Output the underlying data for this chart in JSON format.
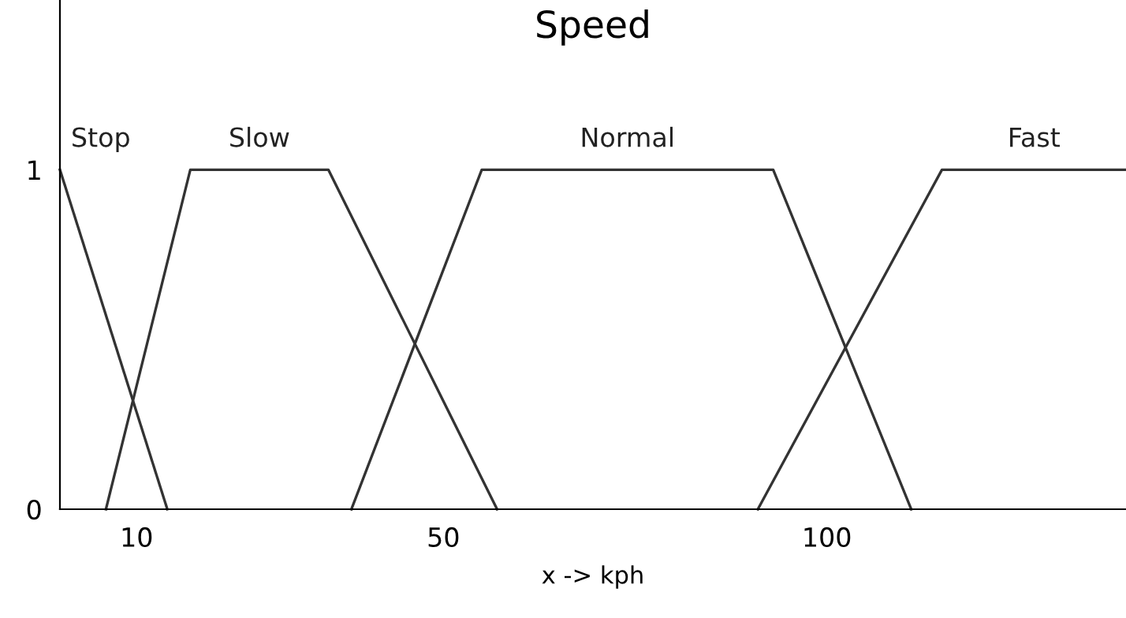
{
  "chart_data": {
    "type": "line",
    "title": "Speed",
    "xlabel": "x -> kph",
    "xlim": [
      0,
      139
    ],
    "xticks": [
      10,
      50,
      100
    ],
    "ylim": [
      0,
      1.5
    ],
    "yticks": [
      0,
      1
    ],
    "grid": false,
    "legend": false,
    "marker": "none",
    "line_style": "solid",
    "series": [
      {
        "name": "Stop",
        "color": "#333333",
        "x": [
          0,
          14
        ],
        "values": [
          1,
          0
        ]
      },
      {
        "name": "Slow",
        "color": "#333333",
        "x": [
          6,
          17,
          35,
          57
        ],
        "values": [
          0,
          1,
          1,
          0
        ]
      },
      {
        "name": "Normal",
        "color": "#333333",
        "x": [
          38,
          55,
          93,
          111
        ],
        "values": [
          0,
          1,
          1,
          0
        ]
      },
      {
        "name": "Fast",
        "color": "#333333",
        "x": [
          91,
          115,
          139
        ],
        "values": [
          0,
          1,
          1
        ]
      }
    ]
  }
}
